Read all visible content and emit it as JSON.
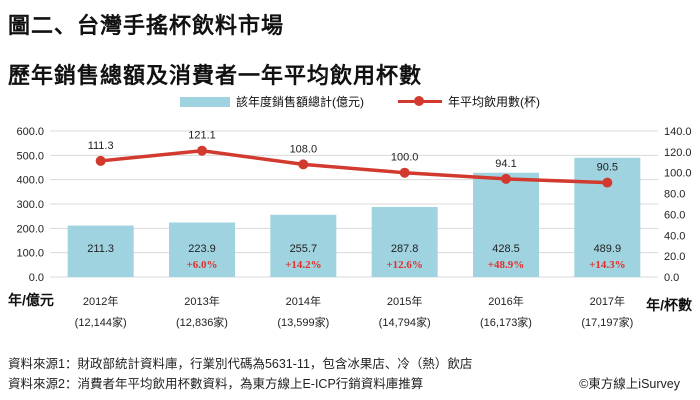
{
  "page": {
    "title": "圖二、台灣手搖杯飲料市場",
    "subtitle": "歷年銷售總額及消費者一年平均飲用杯數",
    "source1": "資料來源1：財政部統計資料庫，行業別代碼為5631-11，包含冰果店、冷（熱）飲店",
    "source2": "資料來源2：消費者年平均飲用杯數資料，為東方線上E-ICP行銷資料庫推算",
    "copyright": "©東方線上iSurvey"
  },
  "colors": {
    "bar": "#9fd3e0",
    "line": "#d33a2f",
    "growth": "#e0302a",
    "grid": "#d9d9d9"
  },
  "chart_data": {
    "type": "bar",
    "categories": [
      "2012年",
      "2013年",
      "2014年",
      "2015年",
      "2016年",
      "2017年"
    ],
    "sub_labels": [
      "(12,144家)",
      "(12,836家)",
      "(13,599家)",
      "(14,794家)",
      "(16,173家)",
      "(17,197家)"
    ],
    "x_unit_label": "年/億元",
    "y2_unit_label": "年/杯數",
    "series": [
      {
        "name": "該年度銷售額總計(億元)",
        "type": "bar",
        "axis": "left",
        "values": [
          211.3,
          223.9,
          255.7,
          287.8,
          428.5,
          489.9
        ],
        "labels": [
          "211.3",
          "223.9",
          "255.7",
          "287.8",
          "428.5",
          "489.9"
        ],
        "growth": [
          "",
          "+6.0%",
          "+14.2%",
          "+12.6%",
          "+48.9%",
          "+14.3%"
        ]
      },
      {
        "name": "年平均飲用數(杯)",
        "type": "line",
        "axis": "right",
        "values": [
          111.3,
          121.1,
          108.0,
          100.0,
          94.1,
          90.5
        ],
        "labels": [
          "111.3",
          "121.1",
          "108.0",
          "100.0",
          "94.1",
          "90.5"
        ]
      }
    ],
    "y_left": {
      "min": 0,
      "max": 600,
      "ticks": [
        "0.0",
        "100.0",
        "200.0",
        "300.0",
        "400.0",
        "500.0",
        "600.0"
      ]
    },
    "y_right": {
      "min": 0,
      "max": 140,
      "ticks": [
        "0.0",
        "20.0",
        "40.0",
        "60.0",
        "80.0",
        "100.0",
        "120.0",
        "140.0"
      ]
    },
    "grid": true,
    "legend_position": "top"
  }
}
